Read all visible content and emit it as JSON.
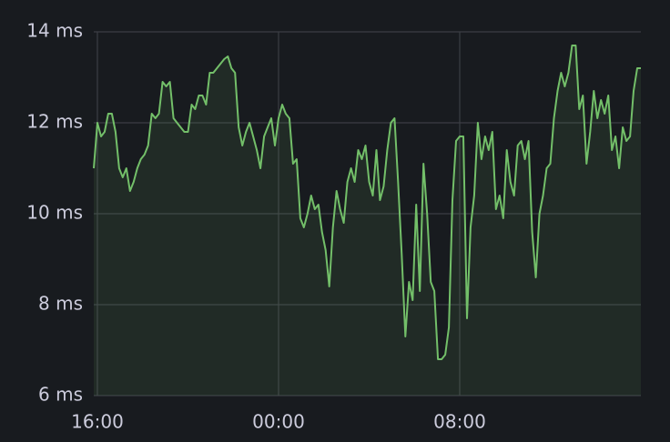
{
  "chart_data": {
    "type": "line",
    "x": [
      15.84,
      16,
      16.16,
      16.32,
      16.48,
      16.64,
      16.8,
      16.96,
      17.12,
      17.28,
      17.44,
      17.6,
      17.76,
      17.92,
      18.08,
      18.24,
      18.4,
      18.56,
      18.72,
      18.88,
      19.04,
      19.2,
      19.36,
      19.52,
      19.68,
      19.84,
      20,
      20.16,
      20.32,
      20.48,
      20.64,
      20.8,
      20.96,
      21.12,
      21.28,
      21.44,
      21.6,
      21.76,
      21.92,
      22.08,
      22.24,
      22.4,
      22.56,
      22.72,
      22.88,
      23.04,
      23.2,
      23.36,
      23.52,
      23.68,
      23.84,
      24,
      24.16,
      24.32,
      24.48,
      24.64,
      24.8,
      24.96,
      25.12,
      25.28,
      25.44,
      25.6,
      25.76,
      25.92,
      26.08,
      26.24,
      26.4,
      26.56,
      26.72,
      26.88,
      27.04,
      27.2,
      27.36,
      27.52,
      27.68,
      27.84,
      28,
      28.16,
      28.32,
      28.48,
      28.64,
      28.8,
      28.96,
      29.12,
      29.28,
      29.44,
      29.6,
      29.76,
      29.92,
      30.08,
      30.24,
      30.4,
      30.56,
      30.72,
      30.88,
      31.04,
      31.2,
      31.36,
      31.52,
      31.68,
      31.84,
      32,
      32.16,
      32.32,
      32.48,
      32.64,
      32.8,
      32.96,
      33.12,
      33.28,
      33.44,
      33.6,
      33.76,
      33.92,
      34.08,
      34.24,
      34.4,
      34.56,
      34.72,
      34.88,
      35.04,
      35.2,
      35.36,
      35.52,
      35.68,
      35.84,
      36,
      36.16,
      36.32,
      36.48,
      36.64,
      36.8,
      36.96,
      37.12,
      37.28,
      37.44,
      37.6,
      37.76,
      37.92,
      38.08,
      38.24,
      38.4,
      38.56,
      38.72,
      38.88,
      39.04,
      39.2,
      39.36,
      39.52,
      39.68,
      39.84,
      40
    ],
    "values": [
      11.0,
      12.0,
      11.7,
      11.8,
      12.2,
      12.2,
      11.8,
      11.0,
      10.8,
      11.0,
      10.5,
      10.7,
      11.0,
      11.2,
      11.3,
      11.5,
      12.2,
      12.1,
      12.2,
      12.9,
      12.8,
      12.9,
      12.1,
      12.0,
      11.9,
      11.8,
      11.8,
      12.4,
      12.3,
      12.6,
      12.6,
      12.4,
      13.1,
      13.1,
      13.2,
      13.3,
      13.4,
      13.46,
      13.2,
      13.1,
      11.9,
      11.5,
      11.8,
      12.0,
      11.7,
      11.4,
      11.0,
      11.7,
      11.9,
      12.1,
      11.5,
      12.1,
      12.4,
      12.2,
      12.1,
      11.1,
      11.2,
      9.9,
      9.7,
      10.0,
      10.4,
      10.1,
      10.2,
      9.6,
      9.2,
      8.4,
      9.7,
      10.5,
      10.1,
      9.8,
      10.7,
      11.0,
      10.7,
      11.4,
      11.2,
      11.5,
      10.7,
      10.4,
      11.4,
      10.3,
      10.6,
      11.4,
      12.0,
      12.1,
      10.7,
      9.1,
      7.3,
      8.5,
      8.1,
      10.2,
      8.3,
      11.1,
      10.0,
      8.5,
      8.3,
      6.8,
      6.8,
      6.9,
      7.5,
      10.3,
      11.6,
      11.7,
      11.7,
      7.7,
      9.7,
      10.4,
      12.0,
      11.2,
      11.7,
      11.4,
      11.8,
      10.1,
      10.4,
      9.9,
      11.4,
      10.7,
      10.4,
      11.5,
      11.6,
      11.2,
      11.6,
      9.6,
      8.6,
      10.0,
      10.4,
      11.0,
      11.1,
      12.1,
      12.7,
      13.1,
      12.8,
      13.1,
      13.7,
      13.7,
      12.3,
      12.6,
      11.1,
      11.8,
      12.7,
      12.1,
      12.5,
      12.2,
      12.6,
      11.4,
      11.7,
      11.0,
      11.9,
      11.6,
      11.7,
      12.7,
      13.2,
      13.2
    ],
    "color": "#73bf69",
    "xlim": [
      15.84,
      40
    ],
    "xticks": [
      {
        "value": 16,
        "label": "16:00"
      },
      {
        "value": 24,
        "label": "00:00"
      },
      {
        "value": 32,
        "label": "08:00"
      }
    ],
    "ylim": [
      6,
      14
    ],
    "yticks": [
      {
        "value": 6,
        "label": "6 ms"
      },
      {
        "value": 8,
        "label": "8 ms"
      },
      {
        "value": 10,
        "label": "10 ms"
      },
      {
        "value": 12,
        "label": "12 ms"
      },
      {
        "value": 14,
        "label": "14 ms"
      }
    ],
    "grid": true
  }
}
